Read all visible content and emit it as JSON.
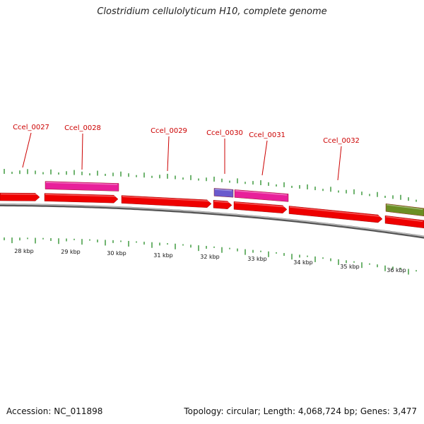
{
  "title": "Clostridium cellulolyticum H10, complete genome",
  "footer": {
    "accession": "Accession: NC_011898",
    "summary": "Topology: circular; Length: 4,068,724 bp; Genes: 3,477"
  },
  "colors": {
    "cds": "#ee0000",
    "rna_pink": "#e8209a",
    "blue": "#6a5acd",
    "olive": "#6b8e23",
    "gene_label": "#cc0000",
    "ticks": "#228b22",
    "backbone": "#888888"
  },
  "gene_labels": [
    "Ccel_0027",
    "Ccel_0028",
    "Ccel_0029",
    "Ccel_0030",
    "Ccel_0031",
    "Ccel_0032"
  ],
  "kbp_labels": [
    "28 kbp",
    "29 kbp",
    "30 kbp",
    "31 kbp",
    "32 kbp",
    "33 kbp",
    "34 kbp",
    "35 kbp",
    "36 kbp"
  ]
}
